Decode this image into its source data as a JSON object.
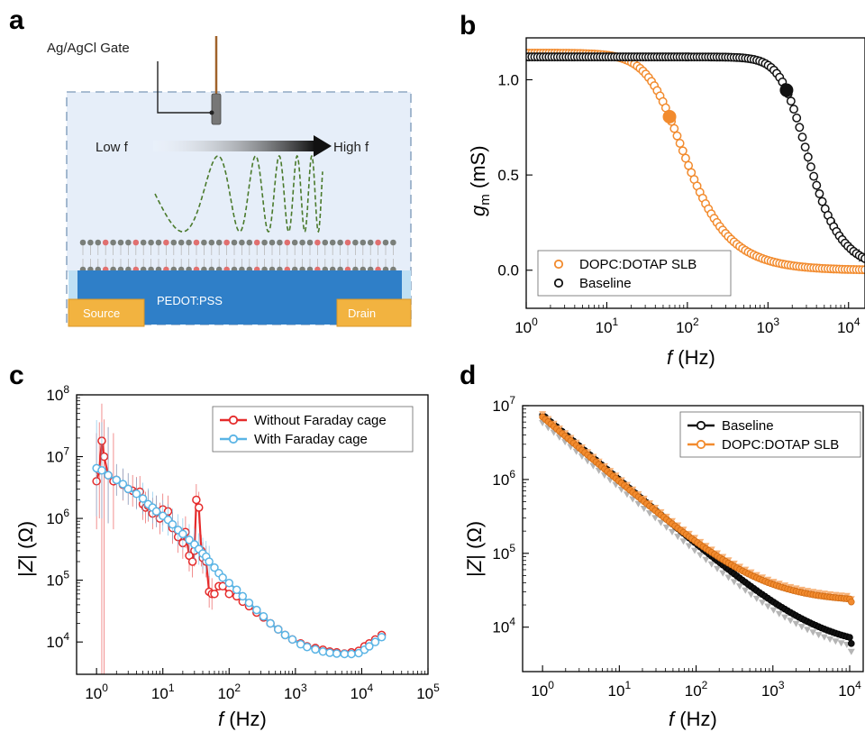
{
  "panels": {
    "a": "a",
    "b": "b",
    "c": "c",
    "d": "d"
  },
  "schematic": {
    "gate_label": "Ag/AgCl Gate",
    "low_f": "Low f",
    "high_f": "High f",
    "channel": "PEDOT:PSS",
    "source": "Source",
    "drain": "Drain"
  },
  "colors": {
    "orange": "#f28b2e",
    "black": "#111111",
    "red": "#e52b2b",
    "blue": "#5ab4e5",
    "gray": "#9a9a9a",
    "pedot": "#2f7fc8",
    "electrode": "#f2b340",
    "electrolyte": "#e6eef9",
    "wave": "#4a7a2c",
    "lipid_head_gray": "#7a7f7a",
    "lipid_head_red": "#e07070"
  },
  "chart_data": [
    {
      "id": "b",
      "type": "scatter",
      "xlabel": "f (Hz)",
      "ylabel": "g_m (mS)",
      "xscale": "log",
      "xlim": [
        1,
        16000
      ],
      "ylim": [
        -0.2,
        1.22
      ],
      "x_ticks": [
        "10^0",
        "10^1",
        "10^2",
        "10^3",
        "10^4"
      ],
      "y_ticks": [
        "0.0",
        "0.5",
        "1.0"
      ],
      "legend_position": "bottom-left",
      "series": [
        {
          "name": "DOPC:DOTAP SLB",
          "color": "#f28b2e",
          "model": "lowpass",
          "g0": 1.14,
          "fc": 60,
          "n": 1.1,
          "highlight_x": 60
        },
        {
          "name": "Baseline",
          "color": "#111111",
          "model": "lowpass",
          "g0": 1.12,
          "fc": 2300,
          "n": 1.5,
          "highlight_x": 1700
        }
      ]
    },
    {
      "id": "c",
      "type": "line",
      "xlabel": "f (Hz)",
      "ylabel": "|Z| (Ω)",
      "xscale": "log",
      "yscale": "log",
      "xlim": [
        0.5,
        100000
      ],
      "ylim": [
        3000,
        100000000
      ],
      "x_ticks": [
        "10^0",
        "10^1",
        "10^2",
        "10^3",
        "10^4",
        "10^5"
      ],
      "y_ticks": [
        "10^4",
        "10^5",
        "10^6",
        "10^7",
        "10^8"
      ],
      "legend_position": "top-right",
      "series": [
        {
          "name": "Without Faraday cage",
          "color": "#e52b2b",
          "x": [
            1,
            1.1,
            1.2,
            1.3,
            1.5,
            1.8,
            2,
            2.5,
            3,
            3.5,
            4,
            4.5,
            5,
            5.5,
            6,
            7,
            8,
            9,
            10,
            12,
            14,
            17,
            20,
            22,
            25,
            28,
            30,
            32,
            35,
            38,
            40,
            45,
            50,
            55,
            60,
            70,
            80,
            100,
            130,
            160,
            200,
            260,
            330,
            420,
            550,
            700,
            900,
            1200,
            1500,
            2000,
            2600,
            3300,
            4200,
            5500,
            7000,
            9000,
            11000,
            13000,
            16000,
            20000
          ],
          "y": [
            4000000,
            6000000,
            18000000,
            10000000,
            5000000,
            4000000,
            4200000,
            3500000,
            3000000,
            2800000,
            2600000,
            2700000,
            1700000,
            1500000,
            1600000,
            1200000,
            1300000,
            1000000,
            1400000,
            1300000,
            700000,
            500000,
            400000,
            600000,
            250000,
            200000,
            300000,
            2000000,
            1500000,
            300000,
            230000,
            200000,
            65000,
            60000,
            60000,
            80000,
            80000,
            60000,
            55000,
            45000,
            38000,
            30000,
            25000,
            20000,
            16000,
            13000,
            11000,
            9500,
            8500,
            8000,
            7500,
            7000,
            6800,
            6500,
            6800,
            7200,
            8500,
            9500,
            11000,
            13000
          ]
        },
        {
          "name": "With Faraday cage",
          "color": "#5ab4e5",
          "x": [
            1,
            1.2,
            1.5,
            2,
            2.5,
            3,
            4,
            5,
            6,
            7,
            8,
            10,
            12,
            14,
            17,
            20,
            25,
            30,
            35,
            40,
            45,
            50,
            60,
            70,
            80,
            100,
            130,
            160,
            200,
            260,
            330,
            420,
            550,
            700,
            900,
            1200,
            1500,
            2000,
            2600,
            3300,
            4200,
            5500,
            7000,
            9000,
            11000,
            13000,
            16000,
            20000
          ],
          "y": [
            6500000,
            6000000,
            5000000,
            4200000,
            3600000,
            3000000,
            2500000,
            2100000,
            1700000,
            1500000,
            1300000,
            1100000,
            950000,
            800000,
            650000,
            560000,
            450000,
            380000,
            320000,
            270000,
            240000,
            200000,
            160000,
            130000,
            110000,
            90000,
            70000,
            55000,
            43000,
            33000,
            26000,
            20000,
            16000,
            13000,
            11000,
            9200,
            8300,
            7600,
            7000,
            6700,
            6500,
            6400,
            6400,
            6600,
            7500,
            8500,
            10000,
            12000
          ]
        }
      ]
    },
    {
      "id": "d",
      "type": "line",
      "xlabel": "f (Hz)",
      "ylabel": "|Z| (Ω)",
      "xscale": "log",
      "yscale": "log",
      "xlim": [
        0.55,
        15000
      ],
      "ylim": [
        2500,
        10000000
      ],
      "x_ticks": [
        "10^0",
        "10^1",
        "10^2",
        "10^3",
        "10^4"
      ],
      "y_ticks": [
        "10^4",
        "10^5",
        "10^6",
        "10^7"
      ],
      "legend_position": "top-right",
      "series": [
        {
          "name": "Baseline",
          "color": "#111111",
          "model": "rc",
          "a": 7500000,
          "slope": 0.88,
          "floor": 5000,
          "uptick": 6000
        },
        {
          "name": "DOPC:DOTAP SLB",
          "color": "#f28b2e",
          "model": "rc",
          "a": 7000000,
          "slope": 0.88,
          "floor": 40000,
          "uptick": 22000
        }
      ]
    }
  ]
}
